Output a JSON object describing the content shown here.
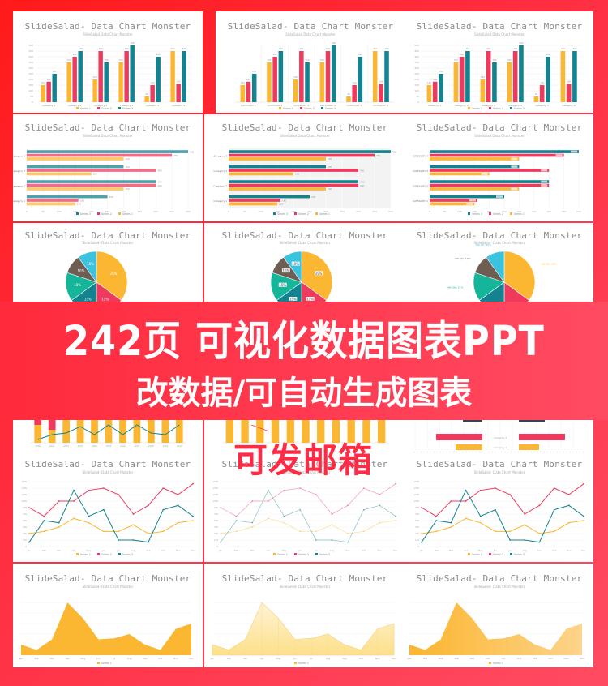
{
  "banner": {
    "line1": "242页 可视化数据图表PPT",
    "line2": "改数据/可自动生成图表",
    "stamp": "可发邮箱"
  },
  "chart_title": "SlideSalad- Data Chart Monster",
  "chart_subtitle": "SlideSalad- Data Chart Monster",
  "colors": {
    "background": "#ff2d40",
    "series1": "#fbb731",
    "series2": "#ef3a5d",
    "series3": "#13838f",
    "pie_teal": "#15b59a",
    "pie_brown": "#6d5d53",
    "pie_cyan": "#39c3de"
  },
  "panels": {
    "row1": [
      {
        "title": "SlideSalad- Data Chart Monster",
        "subtitle": "SlideSalad Data Chart Monster"
      },
      {
        "title": "SlideSalad- Data Chart Monster",
        "subtitle": "SlideSalad Data Chart Monster"
      },
      {
        "title": "SlideSalad- Data Chart Monster",
        "subtitle": "SlideSalad Data Chart Monster"
      }
    ],
    "row2": [
      {
        "title": "SlideSalad- Data Chart Monster",
        "subtitle": "SlideSalad Data Chart Monster"
      },
      {
        "title": "SlideSalad- Data Chart Monster",
        "subtitle": "SlideSalad Data Chart Monster"
      },
      {
        "title": "SlideSalad- Data Chart Monster",
        "subtitle": "SlideSalad Data Chart Monster"
      }
    ],
    "row3": [
      {
        "title": "SlideSalad- Data Chart Monster",
        "subtitle": "SlideSalad- Data Chart Monster"
      },
      {
        "title": "SlideSalad- Data Chart Monster",
        "subtitle": "SlideSalad- Data Chart Monster"
      },
      {
        "title": "SlideSalad- Data Chart Monster",
        "subtitle": "SlideSalad- Data Chart Monster"
      }
    ],
    "row5": [
      {
        "title": "SlideSalad- Data Chart Monster",
        "subtitle": "SlideSalad- Data Chart Monster"
      },
      {
        "title": "SlideSalad- Data Chart Monster",
        "subtitle": "SlideSalad- Data Chart Monster"
      },
      {
        "title": "SlideSalad- Data Chart Monster",
        "subtitle": "SlideSalad- Data Chart Monster"
      }
    ],
    "row6": [
      {
        "title": "SlideSalad- Data Chart Monster",
        "subtitle": "SlideSalad- Data Chart Monster"
      },
      {
        "title": "SlideSalad- Data Chart Monster",
        "subtitle": "SlideSalad- Data Chart Monster"
      },
      {
        "title": "SlideSalad- Data Chart Monster",
        "subtitle": "SlideSalad- Data Chart Monster"
      }
    ]
  },
  "chart_data": [
    {
      "type": "bar",
      "title": "SlideSalad- Data Chart Monster",
      "categories": [
        "Category 1",
        "Category 2",
        "Category 3",
        "Category 4",
        "Category 5",
        "Category 6"
      ],
      "series": [
        {
          "name": "Series 1",
          "values": [
            150,
            350,
            200,
            350,
            50,
            450
          ]
        },
        {
          "name": "Series 2",
          "values": [
            180,
            400,
            450,
            450,
            150,
            160
          ]
        },
        {
          "name": "Series 3",
          "values": [
            250,
            450,
            350,
            500,
            400,
            450
          ]
        }
      ],
      "ylim": [
        0,
        500
      ],
      "yticks": [
        0,
        50,
        100,
        150,
        200,
        250,
        300,
        350,
        400,
        450,
        500
      ],
      "legend_position": "bottom"
    },
    {
      "type": "bar",
      "orientation": "horizontal",
      "title": "SlideSalad- Data Chart Monster",
      "categories": [
        "Category 1",
        "Category 2",
        "Category 3",
        "Category 4"
      ],
      "series": [
        {
          "name": "Series 3",
          "values": [
            250,
            400,
            300,
            500
          ]
        },
        {
          "name": "Series 2",
          "values": [
            160,
            400,
            400,
            450
          ]
        },
        {
          "name": "Series 1",
          "values": [
            150,
            300,
            200,
            300
          ]
        }
      ],
      "xlim": [
        0,
        500
      ],
      "xticks": [
        0,
        50,
        100,
        150,
        200,
        250,
        300,
        350,
        400,
        450,
        500
      ],
      "legend_position": "bottom"
    },
    {
      "type": "pie",
      "title": "SlideSalad- Data Chart Monster",
      "labels": [
        "1st Qtr",
        "2nd Qtr",
        "3rd Qtr",
        "4th Qtr",
        "5th Qtr",
        "6th Qtr"
      ],
      "values": [
        35,
        15,
        15,
        15,
        10,
        10
      ],
      "visible_labels": [
        "35%",
        "15%",
        "10%",
        "10%"
      ]
    },
    {
      "type": "line",
      "title": "SlideSalad- Data Chart Monster",
      "x": [
        "Jan",
        "Feb",
        "Mar",
        "Apr",
        "May",
        "Jun",
        "Jul",
        "Aug",
        "Sep",
        "Oct",
        "Nov",
        "Dec"
      ],
      "series": [
        {
          "name": "Series 1",
          "values": [
            300,
            350,
            450,
            650,
            550,
            350,
            350,
            500,
            300,
            350,
            550,
            600
          ]
        },
        {
          "name": "Series 2",
          "values": [
            900,
            700,
            1050,
            1050,
            1300,
            1350,
            1200,
            750,
            950,
            1350,
            1200,
            1450
          ]
        },
        {
          "name": "Series 3",
          "values": [
            100,
            600,
            550,
            1300,
            700,
            850,
            150,
            150,
            100,
            850,
            950,
            700
          ]
        }
      ],
      "ylim": [
        0,
        1500
      ],
      "legend_position": "bottom"
    },
    {
      "type": "area",
      "title": "SlideSalad- Data Chart Monster",
      "x": [
        "Jan",
        "Feb",
        "Mar",
        "Apr",
        "May",
        "Jun",
        "Jul",
        "Aug",
        "Sep",
        "Oct",
        "Nov",
        "Dec"
      ],
      "series": [
        {
          "name": "Series 1",
          "values": [
            100,
            50,
            150,
            500,
            350,
            150,
            160,
            200,
            100,
            50,
            250,
            300
          ]
        }
      ],
      "ylim": [
        0,
        500
      ],
      "yticks": [
        0,
        100,
        200,
        300,
        400,
        500
      ],
      "legend_position": "bottom"
    }
  ]
}
